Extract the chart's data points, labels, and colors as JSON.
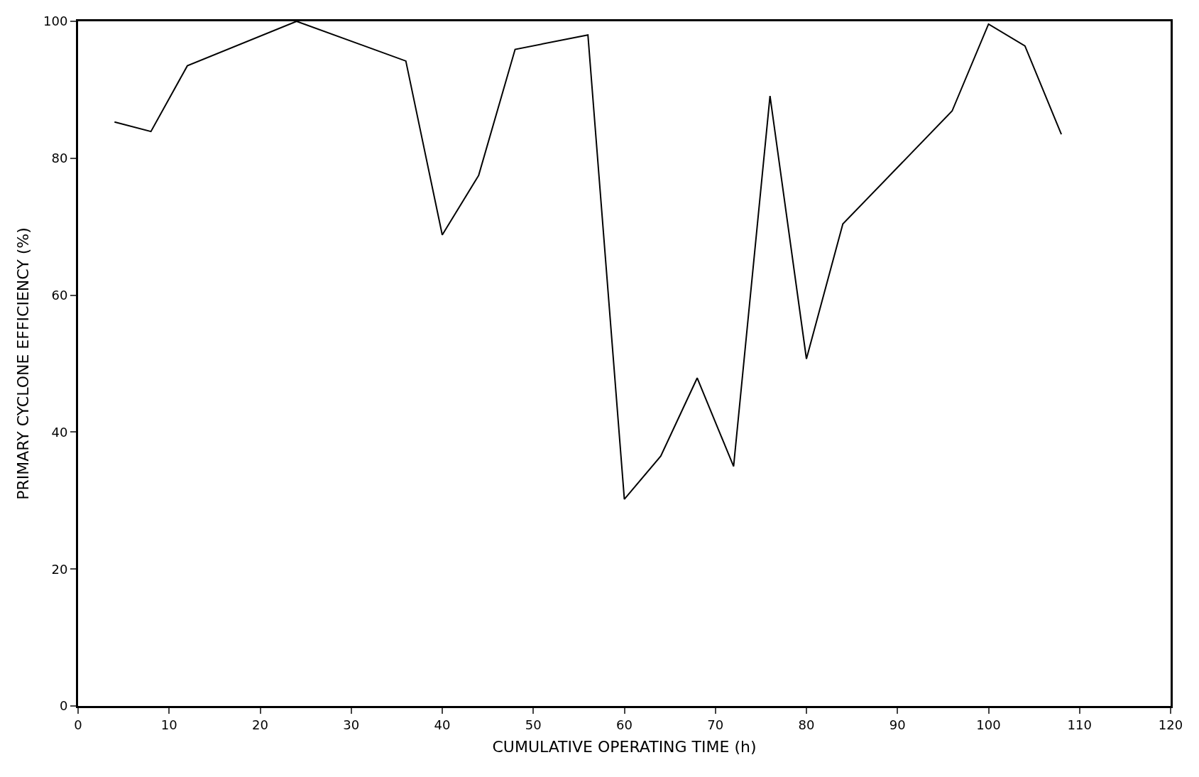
{
  "chart_data": {
    "type": "line",
    "xlabel": "CUMULATIVE OPERATING TIME (h)",
    "ylabel": "PRIMARY CYCLONE EFFICIENCY (%)",
    "x": [
      4,
      8,
      12,
      24,
      36,
      40,
      44,
      48,
      56,
      60,
      64,
      68,
      72,
      76,
      80,
      84,
      96,
      100,
      104,
      108
    ],
    "series": [
      {
        "color": "#000000",
        "values": [
          85.3,
          83.9,
          93.5,
          100,
          94.2,
          68.8,
          77.5,
          95.9,
          98,
          30.2,
          36.5,
          47.9,
          35,
          89.1,
          50.7,
          70.4,
          86.9,
          99.6,
          96.4,
          83.5
        ]
      }
    ],
    "xlim": [
      0,
      120
    ],
    "xticks": [
      0,
      10,
      20,
      30,
      40,
      50,
      60,
      70,
      80,
      90,
      100,
      110,
      120
    ],
    "ylim": [
      0,
      100
    ],
    "yticks": [
      0,
      20,
      40,
      60,
      80,
      100
    ],
    "legend": false,
    "marker": "none",
    "line_style": "solid"
  }
}
